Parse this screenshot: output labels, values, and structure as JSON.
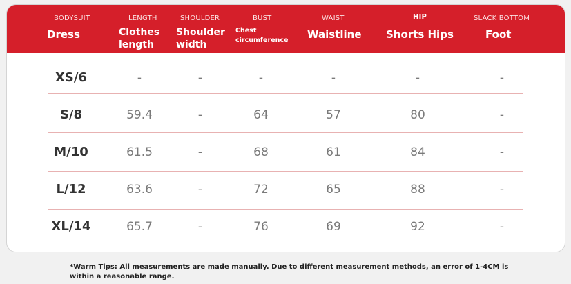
{
  "table": {
    "headers": [
      {
        "caption": "BODYSUIT",
        "label": "Dress"
      },
      {
        "caption": "LENGTH",
        "label": "Clothes\nlength"
      },
      {
        "caption": "SHOULDER",
        "label": "Shoulder\nwidth"
      },
      {
        "caption": "BUST",
        "label": "Chest\ncircumference"
      },
      {
        "caption": "WAIST",
        "label": "Waistline"
      },
      {
        "caption": "HIP",
        "label": "Shorts Hips"
      },
      {
        "caption": "SLACK BOTTOM",
        "label": "Foot"
      }
    ],
    "rows": [
      [
        "XS/6",
        "-",
        "-",
        "-",
        "-",
        "-",
        "-"
      ],
      [
        "S/8",
        "59.4",
        "-",
        "64",
        "57",
        "80",
        "-"
      ],
      [
        "M/10",
        "61.5",
        "-",
        "68",
        "61",
        "84",
        "-"
      ],
      [
        "L/12",
        "63.6",
        "-",
        "72",
        "65",
        "88",
        "-"
      ],
      [
        "XL/14",
        "65.7",
        "-",
        "76",
        "69",
        "92",
        "-"
      ]
    ]
  },
  "tip": "*Warm Tips: All measurements are made manually. Due to different measurement methods, an error of 1-4CM is within a reasonable range.",
  "colors": {
    "header_bg": "#d51f2a",
    "divider": "#e8b2b2",
    "page_bg": "#f1f1f1"
  }
}
